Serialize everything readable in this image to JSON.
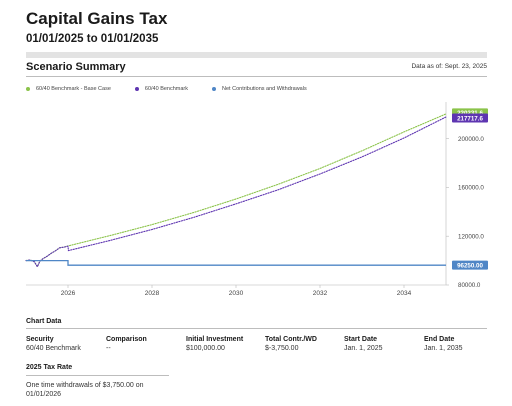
{
  "header": {
    "title": "Capital Gains Tax",
    "date_range": "01/01/2025 to 01/01/2035"
  },
  "scenario": {
    "title": "Scenario Summary",
    "as_of": "Data as of: Sept. 23, 2025"
  },
  "chart_data": {
    "type": "line",
    "x_range": [
      2025.0,
      2035.0
    ],
    "x_ticks": [
      "2026",
      "2028",
      "2030",
      "2032",
      "2034"
    ],
    "ylim": [
      80000,
      230000
    ],
    "y_ticks": [
      "80000.0",
      "120000.0",
      "160000.0",
      "200000.0"
    ],
    "grid": false,
    "legend_placement": "top-left",
    "series": [
      {
        "name": "60/40 Benchmark - Base Case",
        "color": "#8bc34a",
        "style": "dotted",
        "x": [
          2025.0,
          2025.1,
          2025.2,
          2025.27,
          2025.33,
          2025.4,
          2025.5,
          2025.6,
          2025.7,
          2025.8,
          2025.9,
          2026.0,
          2027.0,
          2028.0,
          2029.0,
          2030.0,
          2031.0,
          2032.0,
          2033.0,
          2034.0,
          2035.0
        ],
        "y": [
          100000,
          100500,
          99000,
          95000,
          99500,
          101500,
          103500,
          106000,
          108000,
          110500,
          111000,
          112000,
          120500,
          129500,
          139500,
          150500,
          162500,
          175500,
          190000,
          205500,
          220231.6
        ],
        "end_label": "220231.6"
      },
      {
        "name": "60/40 Benchmark",
        "color": "#5e35b1",
        "style": "dotted",
        "x": [
          2025.0,
          2025.1,
          2025.2,
          2025.27,
          2025.33,
          2025.4,
          2025.5,
          2025.6,
          2025.7,
          2025.8,
          2025.9,
          2026.0,
          2026.01,
          2027.0,
          2028.0,
          2029.0,
          2030.0,
          2031.0,
          2032.0,
          2033.0,
          2034.0,
          2035.0
        ],
        "y": [
          100000,
          100500,
          99000,
          95000,
          99500,
          101500,
          103500,
          106000,
          108000,
          110500,
          111000,
          111800,
          108200,
          116500,
          125500,
          135500,
          146500,
          158000,
          171000,
          185000,
          200500,
          217717.6
        ],
        "end_label": "217717.6"
      },
      {
        "name": "Net Contributions and Withdrawals",
        "color": "#4f86c6",
        "style": "solid",
        "x": [
          2025.0,
          2026.0,
          2026.0,
          2035.0
        ],
        "y": [
          100000,
          100000,
          96250,
          96250
        ],
        "end_label": "96250.00"
      }
    ]
  },
  "chart_info": {
    "title": "Chart Data",
    "columns": [
      {
        "header": "Security",
        "value": "60/40 Benchmark"
      },
      {
        "header": "Comparison",
        "value": "--"
      },
      {
        "header": "Initial Investment",
        "value": "$100,000.00"
      },
      {
        "header": "Total Contr./WD",
        "value": "$-3,750.00"
      },
      {
        "header": "Start Date",
        "value": "Jan. 1, 2025"
      },
      {
        "header": "End Date",
        "value": "Jan. 1, 2035"
      }
    ]
  },
  "tax_rate": {
    "title": "2025 Tax Rate",
    "text": "One time withdrawals of $3,750.00 on 01/01/2026"
  }
}
